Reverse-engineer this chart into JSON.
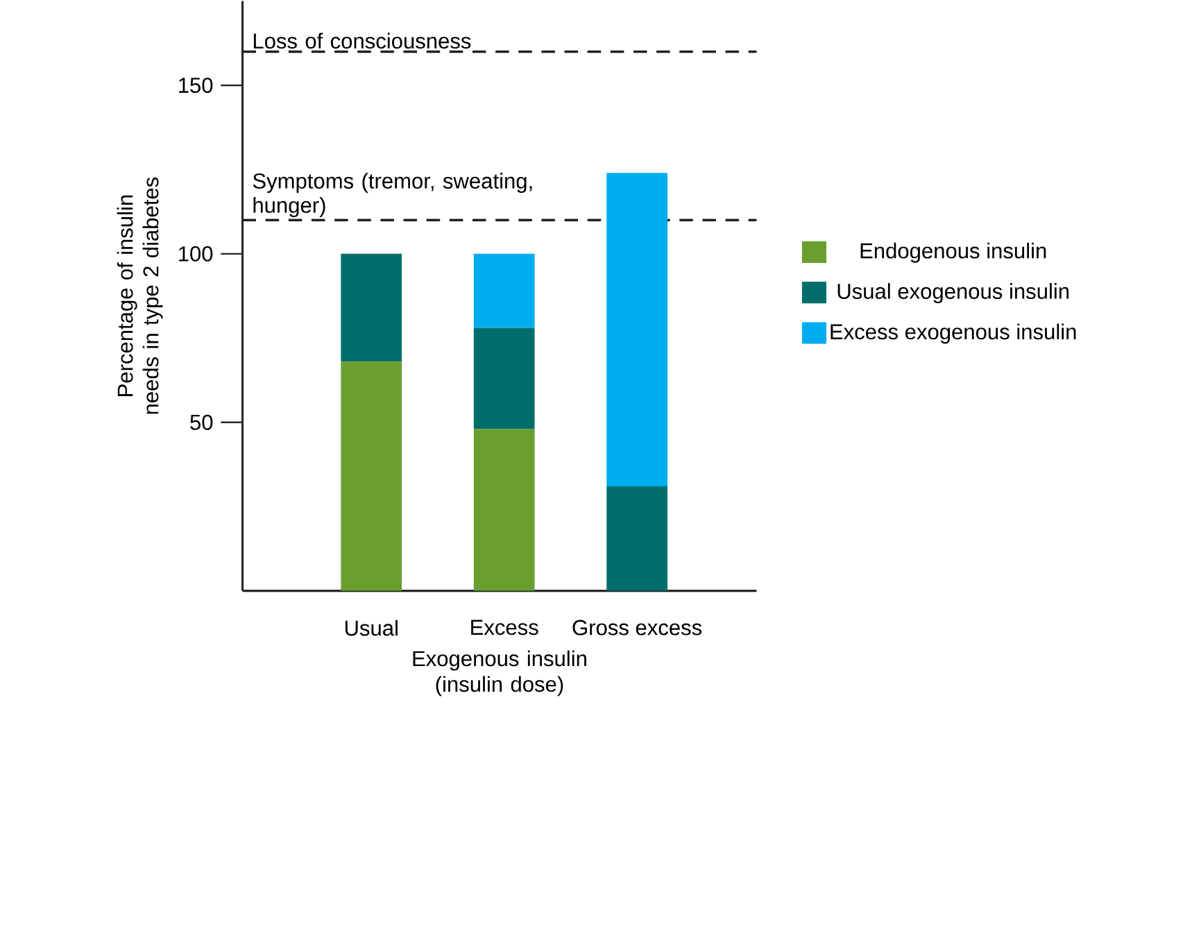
{
  "chart_data": {
    "type": "bar",
    "stacked": true,
    "categories": [
      "Usual",
      "Excess",
      "Gross excess"
    ],
    "series": [
      {
        "name": "Endogenous insulin",
        "color": "#6a9e2f",
        "values": [
          68,
          48,
          0
        ]
      },
      {
        "name": "Usual exogenous insulin",
        "color": "#006f6c",
        "values": [
          32,
          30,
          31
        ]
      },
      {
        "name": "Excess exogenous insulin",
        "color": "#00adef",
        "values": [
          0,
          22,
          93
        ]
      }
    ],
    "xlabel": "Exogenous insulin (insulin dose)",
    "ylabel": "Percentage of insulin needs in type 2 diabetes",
    "ylim": [
      0,
      175
    ],
    "yticks": [
      50,
      100,
      150
    ],
    "ref_lines": [
      {
        "axis": "y",
        "value": 160,
        "label": "Loss of consciousness",
        "line_style": "dashed",
        "color": "#231f20"
      },
      {
        "axis": "y",
        "value": 110,
        "label": "Symptoms (tremor, sweating, hunger)",
        "line_style": "dashed",
        "color": "#231f20"
      }
    ],
    "legend": "right"
  }
}
